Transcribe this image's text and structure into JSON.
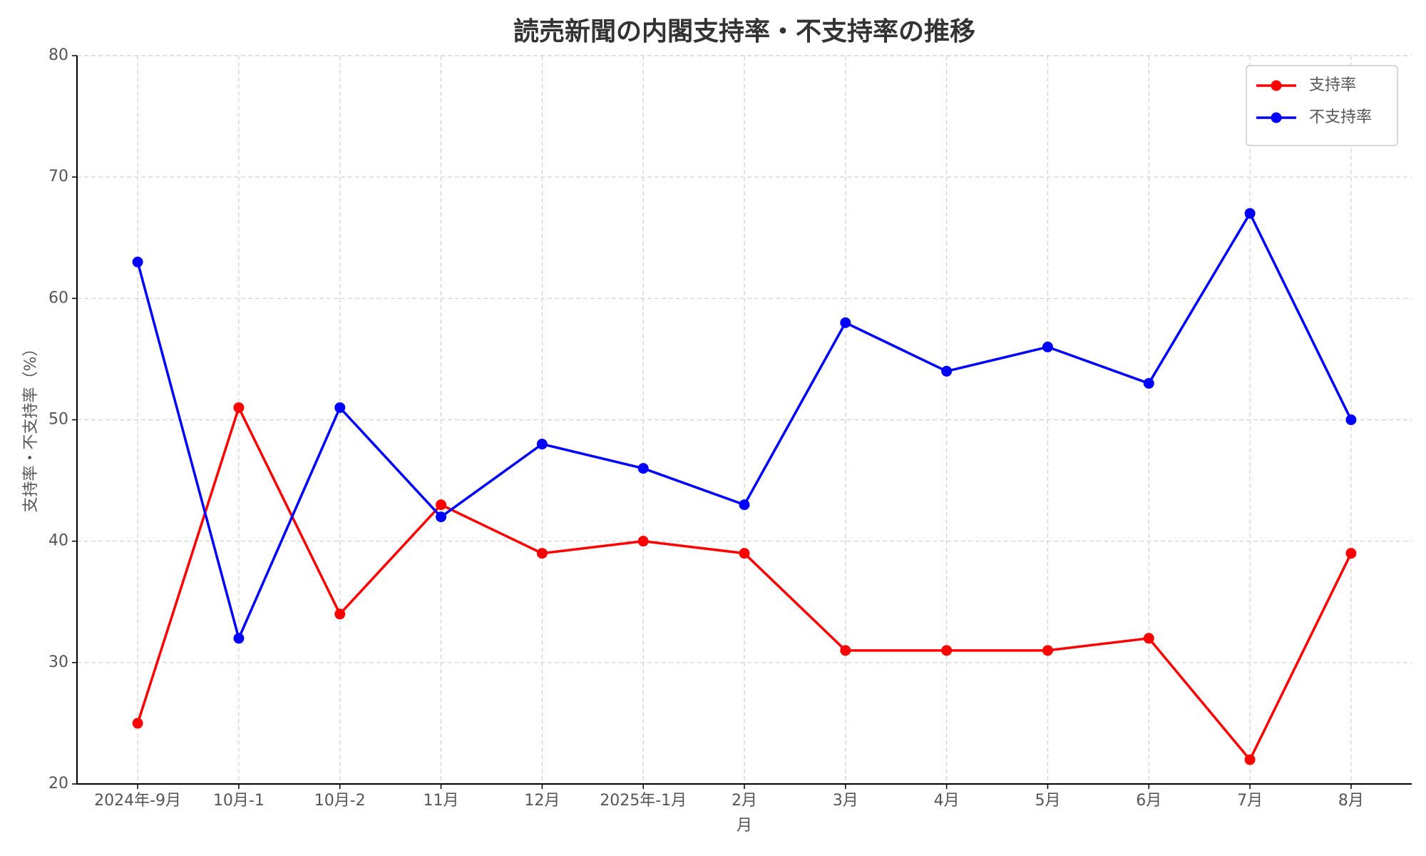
{
  "chart_data": {
    "type": "line",
    "title": "読売新聞の内閣支持率・不支持率の推移",
    "xlabel": "月",
    "ylabel": "支持率・不支持率（%）",
    "categories": [
      "2024年-9月",
      "10月-1",
      "10月-2",
      "11月",
      "12月",
      "2025年-1月",
      "2月",
      "3月",
      "4月",
      "5月",
      "6月",
      "7月",
      "8月"
    ],
    "series": [
      {
        "name": "支持率",
        "color": "#ff0000",
        "values": [
          25,
          51,
          34,
          43,
          39,
          40,
          39,
          31,
          31,
          31,
          32,
          22,
          39
        ]
      },
      {
        "name": "不支持率",
        "color": "#0000ff",
        "values": [
          63,
          32,
          51,
          42,
          48,
          46,
          43,
          58,
          54,
          56,
          53,
          67,
          50
        ]
      }
    ],
    "ylim": [
      20,
      80
    ],
    "yticks": [
      20,
      30,
      40,
      50,
      60,
      70,
      80
    ],
    "grid": true,
    "legend": "upper right"
  }
}
